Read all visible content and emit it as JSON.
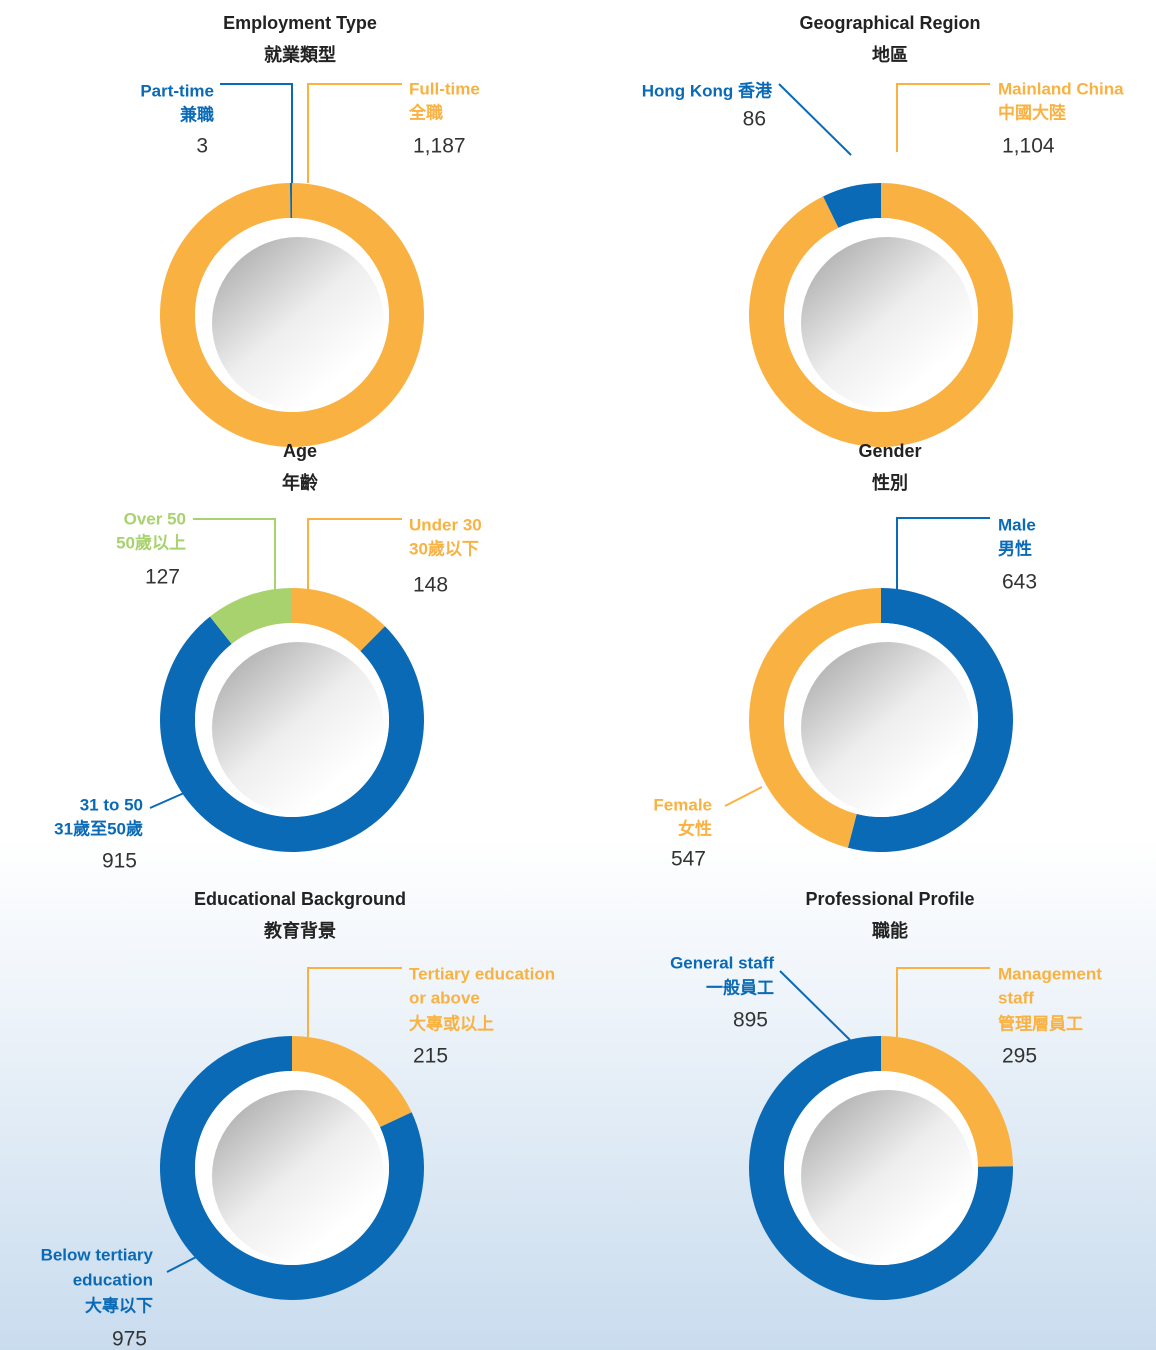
{
  "chart_data": [
    {
      "type": "pie",
      "title": "Employment Type",
      "subtitle": "就業類型",
      "categories": [
        [
          "Full-time",
          "全職"
        ],
        [
          "Part-time",
          "兼職"
        ]
      ],
      "values": [
        1187,
        3
      ],
      "value_labels": [
        "1,187",
        "3"
      ],
      "colors": [
        "#f9b242",
        "#0a6ab6"
      ]
    },
    {
      "type": "pie",
      "title": "Geographical Region",
      "subtitle": "地區",
      "categories": [
        [
          "Mainland China",
          "中國大陸"
        ],
        [
          "Hong Kong 香港"
        ]
      ],
      "values": [
        1104,
        86
      ],
      "value_labels": [
        "1,104",
        "86"
      ],
      "colors": [
        "#f9b242",
        "#0a6ab6"
      ]
    },
    {
      "type": "pie",
      "title": "Age",
      "subtitle": "年齡",
      "categories": [
        [
          "Under 30",
          "30歲以下"
        ],
        [
          "31 to 50",
          "31歲至50歲"
        ],
        [
          "Over 50",
          "50歲以上"
        ]
      ],
      "values": [
        148,
        915,
        127
      ],
      "value_labels": [
        "148",
        "915",
        "127"
      ],
      "colors": [
        "#f9b242",
        "#0a6ab6",
        "#a8d26e"
      ]
    },
    {
      "type": "pie",
      "title": "Gender",
      "subtitle": "性別",
      "categories": [
        [
          "Male",
          "男性"
        ],
        [
          "Female",
          "女性"
        ]
      ],
      "values": [
        643,
        547
      ],
      "value_labels": [
        "643",
        "547"
      ],
      "colors": [
        "#0a6ab6",
        "#f9b242"
      ]
    },
    {
      "type": "pie",
      "title": "Educational Background",
      "subtitle": "教育背景",
      "categories": [
        [
          "Tertiary education",
          "or above",
          "大專或以上"
        ],
        [
          "Below tertiary",
          "education",
          "大專以下"
        ]
      ],
      "values": [
        215,
        975
      ],
      "value_labels": [
        "215",
        "975"
      ],
      "colors": [
        "#f9b242",
        "#0a6ab6"
      ]
    },
    {
      "type": "pie",
      "title": "Professional Profile",
      "subtitle": "職能",
      "categories": [
        [
          "Management",
          "staff",
          "管理層員工"
        ],
        [
          "General staff",
          "一般員工"
        ]
      ],
      "values": [
        295,
        895
      ],
      "value_labels": [
        "295",
        "895"
      ],
      "colors": [
        "#f9b242",
        "#0a6ab6"
      ]
    }
  ]
}
